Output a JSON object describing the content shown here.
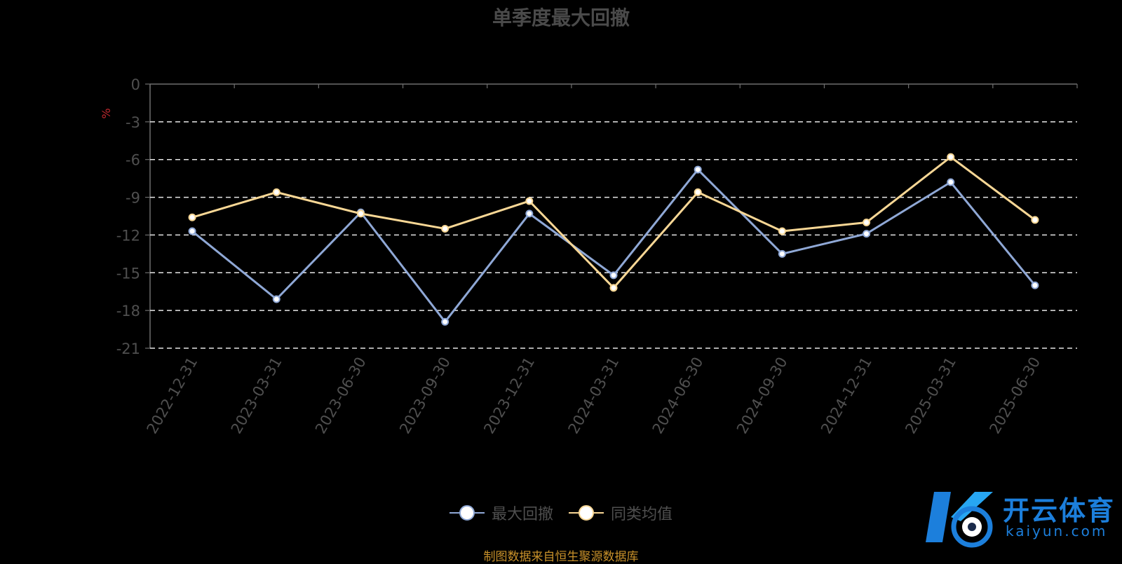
{
  "chart_data": {
    "type": "line",
    "title": "单季度最大回撤",
    "ylabel": "%",
    "ylim": [
      -21,
      0
    ],
    "yticks": [
      "0",
      "-3",
      "-6",
      "-9",
      "-12",
      "-15",
      "-18",
      "-21"
    ],
    "grid": true,
    "legend_position": "bottom",
    "categories": [
      "2022-12-31",
      "2023-03-31",
      "2023-06-30",
      "2023-09-30",
      "2023-12-31",
      "2024-03-31",
      "2024-06-30",
      "2024-09-30",
      "2024-12-31",
      "2025-03-31",
      "2025-06-30"
    ],
    "series": [
      {
        "name": "最大回撤",
        "color": "#8fa8d6",
        "values": [
          -11.7,
          -17.1,
          -10.2,
          -18.9,
          -10.3,
          -15.2,
          -6.8,
          -13.5,
          -11.9,
          -7.8,
          -16.0
        ]
      },
      {
        "name": "同类均值",
        "color": "#f8d795",
        "values": [
          -10.6,
          -8.6,
          -10.3,
          -11.5,
          -9.3,
          -16.2,
          -8.6,
          -11.7,
          -11.0,
          -5.8,
          -10.8
        ]
      }
    ]
  },
  "source_note": "制图数据来自恒生聚源数据库",
  "watermark": {
    "brand": "开云体育",
    "domain": "kaiyun.com"
  }
}
